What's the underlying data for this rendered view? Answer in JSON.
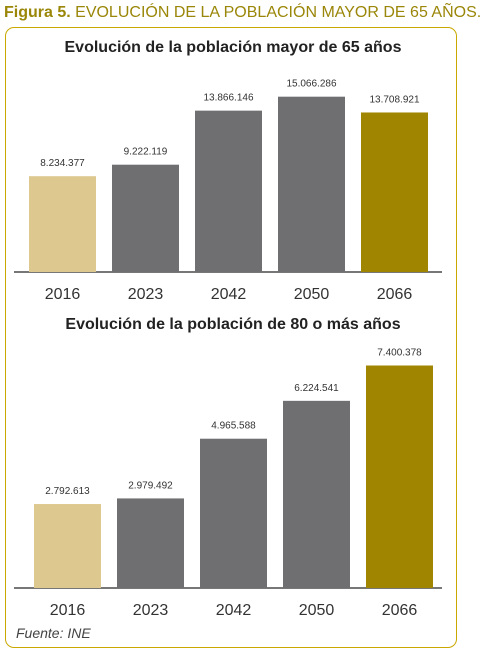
{
  "figure": {
    "number": "Figura 5.",
    "title": "EVOLUCIÓN DE LA POBLACIÓN MAYOR DE 65 AÑOS.",
    "source": "Fuente: INE"
  },
  "colors": {
    "accent": "#9a8608",
    "border": "#c9a800",
    "bar_first": "#ddc98f",
    "bar_middle": "#6f6f72",
    "bar_last": "#a08500",
    "axis": "#4a4a4a"
  },
  "chart_data": [
    {
      "type": "bar",
      "title": "Evolución de la población mayor de 65 años",
      "categories": [
        "2016",
        "2023",
        "2042",
        "2050",
        "2066"
      ],
      "values": [
        8234377,
        9222119,
        13866146,
        15066286,
        13708921
      ],
      "value_labels": [
        "8.234.377",
        "9.222.119",
        "13.866.146",
        "15.066.286",
        "13.708.921"
      ],
      "xlabel": "",
      "ylabel": "",
      "ylim": [
        0,
        16500000
      ],
      "grid": false,
      "legend": "none"
    },
    {
      "type": "bar",
      "title": "Evolución de la población de 80 o más años",
      "categories": [
        "2016",
        "2023",
        "2042",
        "2050",
        "2066"
      ],
      "values": [
        2792613,
        2979492,
        4965588,
        6224541,
        7400378
      ],
      "value_labels": [
        "2.792.613",
        "2.979.492",
        "4.965.588",
        "6.224.541",
        "7.400.378"
      ],
      "xlabel": "",
      "ylabel": "",
      "ylim": [
        0,
        7450000
      ],
      "grid": false,
      "legend": "none"
    }
  ]
}
